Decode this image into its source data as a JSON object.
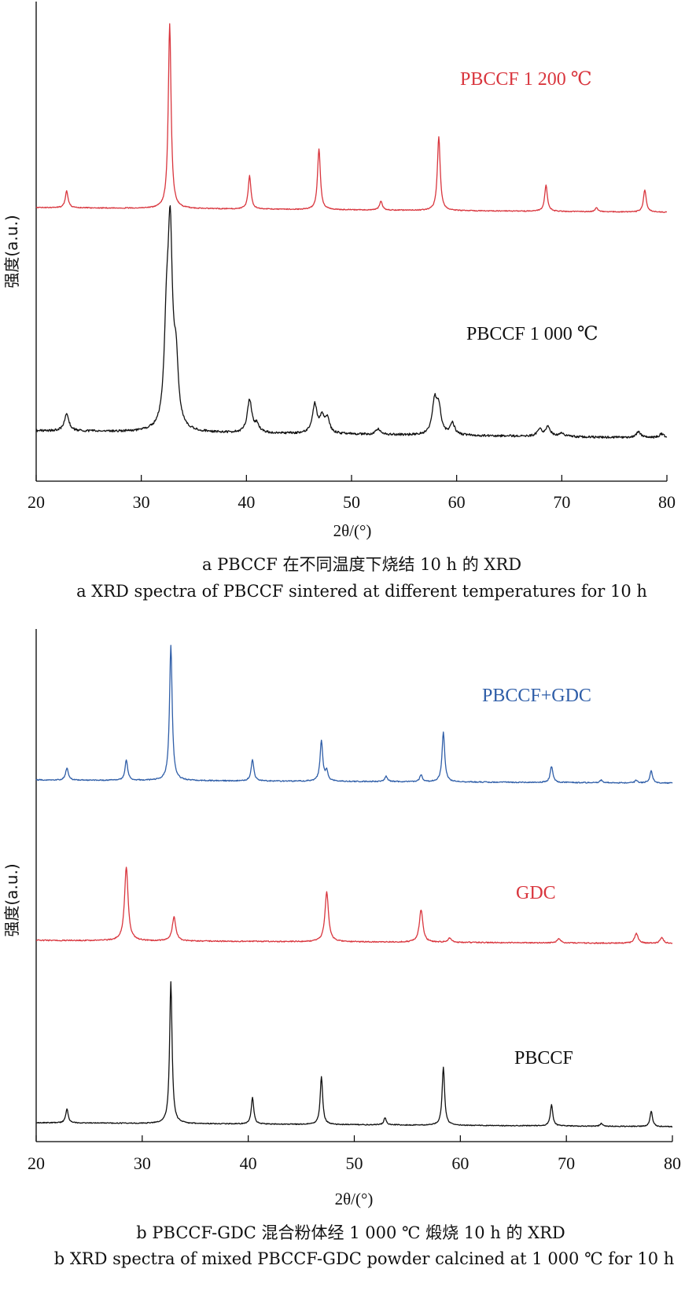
{
  "chart_data": [
    {
      "type": "line",
      "panel": "a",
      "xlabel": "2θ/(°)",
      "ylabel": "强度(a.u.)",
      "xlim": [
        20,
        80
      ],
      "xticks": [
        20,
        30,
        40,
        50,
        60,
        70,
        80
      ],
      "caption_cn": "a  PBCCF 在不同温度下烧结 10 h 的 XRD",
      "caption_en": "a  XRD spectra of PBCCF sintered at different temperatures for 10 h",
      "series": [
        {
          "name": "PBCCF 1 200 ℃",
          "color": "#d9363e",
          "peaks": [
            {
              "x": 22.9,
              "h": 0.09
            },
            {
              "x": 32.7,
              "h": 1.0
            },
            {
              "x": 40.3,
              "h": 0.18
            },
            {
              "x": 46.9,
              "h": 0.33
            },
            {
              "x": 52.8,
              "h": 0.05
            },
            {
              "x": 58.3,
              "h": 0.4
            },
            {
              "x": 68.5,
              "h": 0.14
            },
            {
              "x": 73.3,
              "h": 0.02
            },
            {
              "x": 77.9,
              "h": 0.12
            }
          ]
        },
        {
          "name": "PBCCF 1 000 ℃",
          "color": "#111111",
          "peaks": [
            {
              "x": 22.9,
              "h": 0.09
            },
            {
              "x": 32.4,
              "h": 0.45
            },
            {
              "x": 32.75,
              "h": 0.95
            },
            {
              "x": 33.3,
              "h": 0.31
            },
            {
              "x": 40.3,
              "h": 0.17
            },
            {
              "x": 41.0,
              "h": 0.04
            },
            {
              "x": 46.5,
              "h": 0.15
            },
            {
              "x": 47.2,
              "h": 0.08
            },
            {
              "x": 47.7,
              "h": 0.07
            },
            {
              "x": 52.5,
              "h": 0.03
            },
            {
              "x": 57.9,
              "h": 0.17
            },
            {
              "x": 58.3,
              "h": 0.13
            },
            {
              "x": 59.6,
              "h": 0.06
            },
            {
              "x": 67.9,
              "h": 0.04
            },
            {
              "x": 68.7,
              "h": 0.05
            },
            {
              "x": 70.0,
              "h": 0.02
            },
            {
              "x": 77.3,
              "h": 0.03
            },
            {
              "x": 79.5,
              "h": 0.02
            }
          ]
        }
      ]
    },
    {
      "type": "line",
      "panel": "b",
      "xlabel": "2θ/(°)",
      "ylabel": "强度(a.u.)",
      "xlim": [
        20,
        80
      ],
      "xticks": [
        20,
        30,
        40,
        50,
        60,
        70,
        80
      ],
      "caption_cn": "b  PBCCF-GDC 混合粉体经 1 000 ℃ 煅烧 10 h 的 XRD",
      "caption_en": "b  XRD spectra of mixed PBCCF-GDC powder calcined at 1 000 ℃ for 10 h",
      "series": [
        {
          "name": "PBCCF+GDC",
          "color": "#2f5ea8",
          "peaks": [
            {
              "x": 22.9,
              "h": 0.09
            },
            {
              "x": 28.5,
              "h": 0.15
            },
            {
              "x": 32.7,
              "h": 1.0
            },
            {
              "x": 40.4,
              "h": 0.16
            },
            {
              "x": 46.9,
              "h": 0.3
            },
            {
              "x": 47.4,
              "h": 0.07
            },
            {
              "x": 53.0,
              "h": 0.04
            },
            {
              "x": 56.3,
              "h": 0.05
            },
            {
              "x": 58.4,
              "h": 0.37
            },
            {
              "x": 68.6,
              "h": 0.12
            },
            {
              "x": 73.3,
              "h": 0.02
            },
            {
              "x": 76.6,
              "h": 0.02
            },
            {
              "x": 78.0,
              "h": 0.09
            }
          ]
        },
        {
          "name": "GDC",
          "color": "#d9363e",
          "peaks": [
            {
              "x": 28.5,
              "h": 0.52
            },
            {
              "x": 33.0,
              "h": 0.17
            },
            {
              "x": 47.4,
              "h": 0.35
            },
            {
              "x": 56.3,
              "h": 0.23
            },
            {
              "x": 59.0,
              "h": 0.03
            },
            {
              "x": 69.3,
              "h": 0.03
            },
            {
              "x": 76.6,
              "h": 0.07
            },
            {
              "x": 79.0,
              "h": 0.04
            }
          ]
        },
        {
          "name": "PBCCF",
          "color": "#111111",
          "peaks": [
            {
              "x": 22.9,
              "h": 0.1
            },
            {
              "x": 32.7,
              "h": 1.0
            },
            {
              "x": 40.4,
              "h": 0.19
            },
            {
              "x": 46.9,
              "h": 0.34
            },
            {
              "x": 52.9,
              "h": 0.05
            },
            {
              "x": 58.4,
              "h": 0.41
            },
            {
              "x": 68.6,
              "h": 0.15
            },
            {
              "x": 73.3,
              "h": 0.02
            },
            {
              "x": 78.0,
              "h": 0.11
            }
          ]
        }
      ]
    }
  ]
}
